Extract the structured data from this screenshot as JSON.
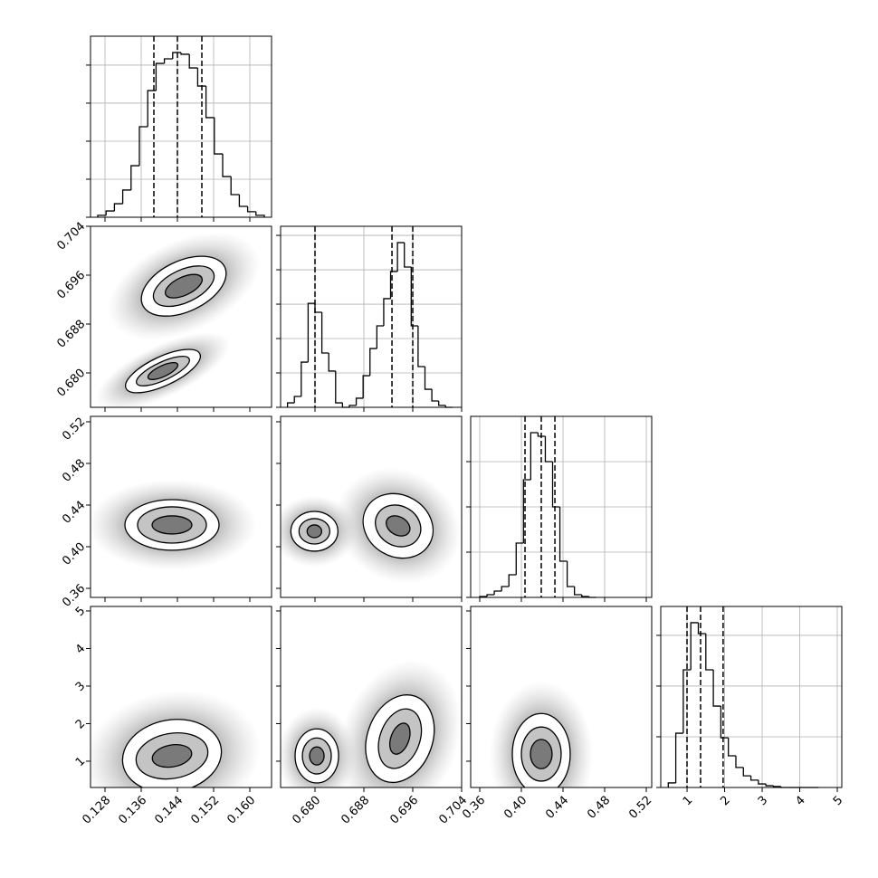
{
  "chart_data": {
    "type": "corner",
    "params": [
      {
        "lim": [
          0.1248,
          0.1648
        ],
        "ticks": [
          {
            "value": 0.128,
            "label": "0.128"
          },
          0.136,
          0.144,
          0.152,
          {
            "value": 0.16,
            "label": "0.160"
          }
        ],
        "hist": {
          "bins": [
            0.1264,
            0.12824,
            0.13008,
            0.13192,
            0.13376,
            0.1356,
            0.13744,
            0.13928,
            0.14112,
            0.14296,
            0.1448,
            0.14664,
            0.14848,
            0.15032,
            0.15216,
            0.154,
            0.15584,
            0.15768,
            0.15952,
            0.16136,
            0.1632
          ],
          "counts": [
            10,
            33,
            71,
            143,
            271,
            476,
            666,
            809,
            833,
            866,
            857,
            785,
            690,
            524,
            333,
            214,
            119,
            57,
            29,
            10
          ],
          "ylim": [
            0,
            952
          ],
          "yticks": [
            0,
            200,
            400,
            600,
            800
          ]
        },
        "quantiles": [
          0.1388,
          0.144,
          0.1494
        ]
      },
      {
        "lim": [
          0.67437,
          0.704
        ],
        "ticks": [
          {
            "value": 0.68,
            "label": "0.680"
          },
          0.688,
          0.696,
          0.704
        ],
        "hist": {
          "bins": [
            0.6755,
            0.676625,
            0.67775,
            0.678875,
            0.68,
            0.681125,
            0.68225,
            0.683375,
            0.6845,
            0.685625,
            0.68675,
            0.687875,
            0.689,
            0.690125,
            0.69125,
            0.692375,
            0.6935,
            0.694625,
            0.69575,
            0.696875,
            0.698,
            0.699125,
            0.70025,
            0.701375,
            0.7025
          ],
          "counts": [
            26,
            63,
            263,
            605,
            553,
            316,
            211,
            26,
            0,
            11,
            53,
            184,
            342,
            474,
            632,
            790,
            958,
            816,
            474,
            237,
            105,
            37,
            11,
            0
          ],
          "ylim": [
            0,
            1053
          ],
          "yticks": [
            0,
            200,
            400,
            600,
            800,
            1000
          ]
        },
        "quantiles": [
          0.68,
          0.6926,
          0.696
        ]
      },
      {
        "lim": [
          0.3513,
          0.5252
        ],
        "ticks": [
          0.36,
          {
            "value": 0.4,
            "label": "0.40"
          },
          0.44,
          0.48,
          0.52
        ],
        "hist": {
          "bins": [
            0.36,
            0.367,
            0.374,
            0.381,
            0.388,
            0.395,
            0.402,
            0.409,
            0.416,
            0.423,
            0.43,
            0.437,
            0.444,
            0.451,
            0.458,
            0.465,
            0.472
          ],
          "counts": [
            4,
            12,
            28,
            48,
            100,
            240,
            520,
            728,
            712,
            600,
            400,
            160,
            48,
            12,
            4,
            0
          ],
          "ylim": [
            0,
            800
          ],
          "yticks": [
            0,
            200,
            400,
            600
          ]
        },
        "quantiles": [
          0.4035,
          0.4191,
          0.4322
        ]
      },
      {
        "lim": [
          0.3,
          5.12
        ],
        "ticks": [
          1,
          2,
          3,
          4,
          5
        ],
        "hist": {
          "bins": [
            0.5,
            0.7,
            0.9,
            1.1,
            1.3,
            1.5,
            1.7,
            1.9,
            2.1,
            2.3,
            2.5,
            2.7,
            2.9,
            3.1,
            3.3,
            3.5,
            3.7,
            3.9,
            4.1,
            4.3,
            4.5
          ],
          "counts": [
            18,
            214,
            464,
            650,
            607,
            464,
            321,
            196,
            125,
            79,
            46,
            29,
            14,
            7,
            4,
            0,
            0,
            0,
            0,
            0
          ],
          "ylim": [
            0,
            714
          ],
          "yticks": [
            0,
            200,
            400,
            600
          ]
        },
        "quantiles": [
          0.999,
          1.36,
          1.96
        ]
      }
    ],
    "panels": [
      {
        "x_param": 0,
        "y_param": 1,
        "contours": [
          {
            "x": 0.1454,
            "y": 0.6942,
            "dx": 0.01,
            "dy": 0.00415,
            "rot": -25
          },
          {
            "x": 0.1454,
            "y": 0.6942,
            "dx": 0.0072,
            "dy": 0.00267,
            "rot": -25
          },
          {
            "x": 0.1454,
            "y": 0.6942,
            "dx": 0.0044,
            "dy": 0.00148,
            "rot": -25
          },
          {
            "x": 0.1408,
            "y": 0.6803,
            "dx": 0.009,
            "dy": 0.00237,
            "rot": -25
          },
          {
            "x": 0.1408,
            "y": 0.6803,
            "dx": 0.0064,
            "dy": 0.00148,
            "rot": -25
          },
          {
            "x": 0.1408,
            "y": 0.6803,
            "dx": 0.0036,
            "dy": 0.00089,
            "rot": -25
          }
        ]
      },
      {
        "x_param": 0,
        "y_param": 2,
        "contours": [
          {
            "x": 0.1428,
            "y": 0.4209,
            "dx": 0.0104,
            "dy": 0.0243,
            "rot": 0
          },
          {
            "x": 0.1428,
            "y": 0.4209,
            "dx": 0.0076,
            "dy": 0.0174,
            "rot": 0
          },
          {
            "x": 0.1428,
            "y": 0.4209,
            "dx": 0.0044,
            "dy": 0.0087,
            "rot": 0
          }
        ]
      },
      {
        "x_param": 1,
        "y_param": 2,
        "contours": [
          {
            "x": 0.6799,
            "y": 0.4148,
            "dx": 0.00385,
            "dy": 0.0191,
            "rot": 0
          },
          {
            "x": 0.6799,
            "y": 0.4148,
            "dx": 0.00252,
            "dy": 0.0122,
            "rot": 0
          },
          {
            "x": 0.6799,
            "y": 0.4148,
            "dx": 0.00119,
            "dy": 0.0061,
            "rot": 0
          },
          {
            "x": 0.6936,
            "y": 0.42,
            "dx": 0.00593,
            "dy": 0.0296,
            "rot": 30
          },
          {
            "x": 0.6936,
            "y": 0.42,
            "dx": 0.00385,
            "dy": 0.0191,
            "rot": 30
          },
          {
            "x": 0.6936,
            "y": 0.42,
            "dx": 0.00207,
            "dy": 0.0087,
            "rot": 30
          }
        ]
      },
      {
        "x_param": 0,
        "y_param": 3,
        "contours": [
          {
            "x": 0.1428,
            "y": 1.14,
            "dx": 0.011,
            "dy": 0.96,
            "rot": -10
          },
          {
            "x": 0.1428,
            "y": 1.14,
            "dx": 0.008,
            "dy": 0.6,
            "rot": -10
          },
          {
            "x": 0.1428,
            "y": 1.14,
            "dx": 0.0044,
            "dy": 0.29,
            "rot": -10
          }
        ]
      },
      {
        "x_param": 1,
        "y_param": 3,
        "contours": [
          {
            "x": 0.6803,
            "y": 1.14,
            "dx": 0.00356,
            "dy": 0.72,
            "rot": 0
          },
          {
            "x": 0.6803,
            "y": 1.14,
            "dx": 0.00237,
            "dy": 0.48,
            "rot": 0
          },
          {
            "x": 0.6803,
            "y": 1.14,
            "dx": 0.00119,
            "dy": 0.24,
            "rot": 0
          },
          {
            "x": 0.6939,
            "y": 1.6,
            "dx": 0.00533,
            "dy": 1.2,
            "rot": 20
          },
          {
            "x": 0.6939,
            "y": 1.6,
            "dx": 0.00326,
            "dy": 0.82,
            "rot": 20
          },
          {
            "x": 0.6939,
            "y": 1.6,
            "dx": 0.00148,
            "dy": 0.43,
            "rot": 20
          }
        ]
      },
      {
        "x_param": 2,
        "y_param": 3,
        "contours": [
          {
            "x": 0.4191,
            "y": 1.19,
            "dx": 0.0278,
            "dy": 1.08,
            "rot": 0
          },
          {
            "x": 0.4191,
            "y": 1.19,
            "dx": 0.0191,
            "dy": 0.72,
            "rot": 0
          },
          {
            "x": 0.4191,
            "y": 1.19,
            "dx": 0.0104,
            "dy": 0.39,
            "rot": 0
          }
        ]
      }
    ]
  }
}
